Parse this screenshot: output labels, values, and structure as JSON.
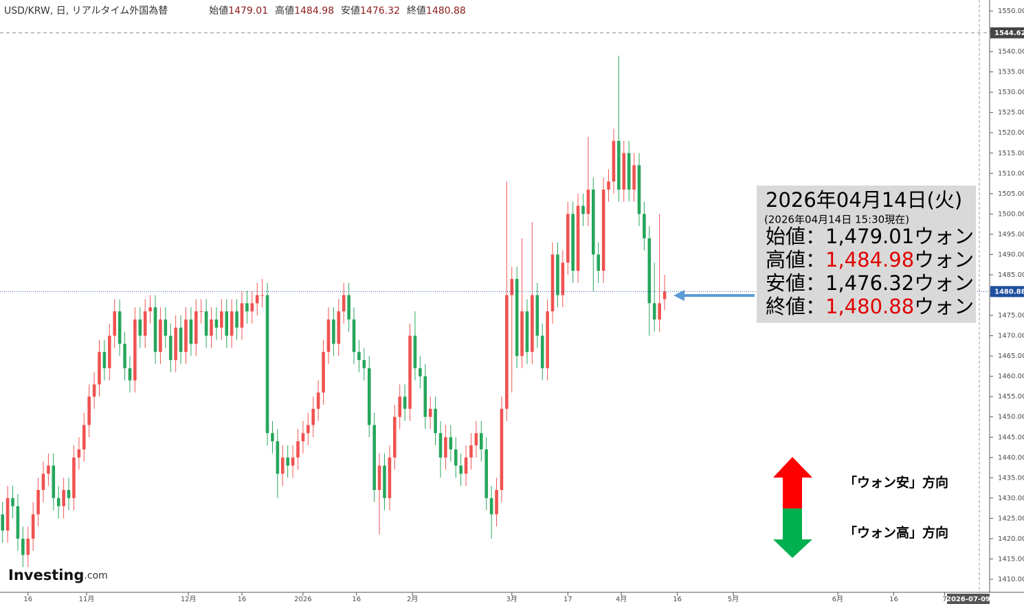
{
  "header": {
    "symbol": "USD/KRW, 日, リアルタイム外国為替",
    "open_label": "始値",
    "high_label": "高値",
    "low_label": "安値",
    "close_label": "終値"
  },
  "chart_data": {
    "type": "candlestick",
    "up_color": "#ef5350",
    "down_color": "#26a65b",
    "categories": [
      null,
      null,
      null,
      null,
      null,
      null,
      null,
      null,
      null,
      null,
      null,
      null,
      null,
      null,
      null,
      null,
      null,
      null,
      null,
      null,
      null,
      null,
      null,
      null,
      null,
      null,
      null,
      null,
      null,
      null,
      null,
      null,
      null,
      null,
      null,
      null,
      null,
      null,
      null,
      null,
      null,
      null,
      null,
      null,
      null,
      null,
      null,
      null,
      null,
      null,
      null,
      null,
      null,
      null,
      null,
      null,
      null,
      null,
      null,
      null,
      null,
      null,
      null,
      null,
      null,
      null,
      null,
      null,
      null,
      null,
      null,
      null,
      null,
      null,
      null,
      null,
      null,
      null,
      null,
      null,
      null,
      null,
      null,
      null,
      null,
      null,
      null,
      null,
      null,
      null,
      null,
      null,
      null,
      null,
      null,
      null,
      null,
      null,
      null,
      null,
      null,
      null,
      null,
      null,
      null,
      null,
      null,
      null,
      null,
      null,
      null,
      null,
      null,
      null,
      null,
      null,
      null,
      null,
      null,
      null,
      null,
      null,
      null,
      null,
      null,
      null,
      null,
      null,
      null,
      null,
      null
    ],
    "open": [
      1426,
      1422,
      1430,
      1428,
      1420,
      1416,
      1420,
      1426,
      1432,
      1436,
      1438,
      1430,
      1428,
      1432,
      1430,
      1440,
      1442,
      1448,
      1455,
      1458,
      1466,
      1462,
      1470,
      1476,
      1468,
      1462,
      1459,
      1474,
      1470,
      1476,
      1477,
      1466,
      1474,
      1470,
      1464,
      1472,
      1466,
      1474,
      1468,
      1476,
      1476,
      1470,
      1474,
      1472,
      1476,
      1470,
      1476,
      1472,
      1478,
      1476,
      1478,
      1480,
      1480,
      1446,
      1444,
      1436,
      1440,
      1438,
      1440,
      1444,
      1446,
      1448,
      1452,
      1456,
      1466,
      1474,
      1468,
      1476,
      1480,
      1474,
      1466,
      1464,
      1462,
      1448,
      1432,
      1438,
      1430,
      1440,
      1450,
      1455,
      1452,
      1470,
      1462,
      1460,
      1450,
      1452,
      1446,
      1440,
      1445,
      1442,
      1438,
      1436,
      1440,
      1443,
      1446,
      1442,
      1430,
      1426,
      1432,
      1452,
      1480,
      1484,
      1465,
      1476,
      1466,
      1480,
      1470,
      1462,
      1476,
      1490,
      1480,
      1488,
      1500,
      1486,
      1502,
      1500,
      1506,
      1490,
      1486,
      1506,
      1508,
      1518,
      1506,
      1515,
      1506,
      1512,
      1500,
      1494,
      1478,
      1474,
      1479.01
    ],
    "high": [
      1429,
      1433,
      1433,
      1431,
      1423,
      1423,
      1429,
      1435,
      1439,
      1441,
      1441,
      1433,
      1435,
      1435,
      1443,
      1445,
      1451,
      1458,
      1461,
      1469,
      1469,
      1473,
      1479,
      1479,
      1471,
      1465,
      1477,
      1477,
      1479,
      1480,
      1480,
      1477,
      1477,
      1473,
      1475,
      1475,
      1477,
      1477,
      1479,
      1479,
      1479,
      1477,
      1477,
      1479,
      1479,
      1479,
      1479,
      1481,
      1481,
      1481,
      1483,
      1484,
      1483,
      1449,
      1447,
      1443,
      1443,
      1443,
      1447,
      1449,
      1451,
      1455,
      1459,
      1469,
      1477,
      1477,
      1479,
      1483,
      1483,
      1477,
      1469,
      1467,
      1465,
      1451,
      1441,
      1441,
      1443,
      1453,
      1458,
      1458,
      1473,
      1476,
      1465,
      1463,
      1455,
      1455,
      1449,
      1448,
      1448,
      1445,
      1441,
      1443,
      1446,
      1449,
      1449,
      1445,
      1433,
      1435,
      1455,
      1508,
      1487,
      1487,
      1494,
      1479,
      1498,
      1483,
      1473,
      1479,
      1493,
      1493,
      1491,
      1503,
      1503,
      1505,
      1505,
      1519,
      1509,
      1493,
      1509,
      1511,
      1521,
      1539,
      1518,
      1518,
      1515,
      1515,
      1503,
      1497,
      1488,
      1500,
      1484.98
    ],
    "low": [
      1419,
      1419,
      1425,
      1417,
      1413,
      1413,
      1417,
      1423,
      1429,
      1433,
      1427,
      1425,
      1425,
      1427,
      1427,
      1437,
      1439,
      1445,
      1452,
      1455,
      1459,
      1459,
      1467,
      1465,
      1459,
      1456,
      1456,
      1467,
      1467,
      1473,
      1463,
      1463,
      1467,
      1461,
      1461,
      1463,
      1463,
      1465,
      1465,
      1473,
      1467,
      1467,
      1469,
      1469,
      1467,
      1467,
      1469,
      1469,
      1473,
      1473,
      1475,
      1477,
      1443,
      1441,
      1430,
      1433,
      1435,
      1435,
      1437,
      1441,
      1443,
      1445,
      1449,
      1453,
      1463,
      1465,
      1465,
      1473,
      1471,
      1463,
      1461,
      1459,
      1445,
      1429,
      1421,
      1427,
      1427,
      1437,
      1447,
      1449,
      1449,
      1459,
      1457,
      1447,
      1447,
      1443,
      1435,
      1437,
      1439,
      1435,
      1433,
      1433,
      1437,
      1440,
      1439,
      1427,
      1420,
      1423,
      1429,
      1449,
      1456,
      1462,
      1462,
      1463,
      1463,
      1467,
      1459,
      1459,
      1473,
      1477,
      1477,
      1485,
      1483,
      1483,
      1497,
      1497,
      1481,
      1483,
      1483,
      1503,
      1505,
      1503,
      1503,
      1503,
      1503,
      1497,
      1491,
      1470,
      1471,
      1471,
      1476.32
    ],
    "close": [
      1422,
      1430,
      1428,
      1420,
      1416,
      1420,
      1426,
      1432,
      1436,
      1438,
      1430,
      1428,
      1432,
      1430,
      1440,
      1442,
      1448,
      1455,
      1458,
      1466,
      1462,
      1470,
      1476,
      1468,
      1462,
      1459,
      1474,
      1470,
      1476,
      1477,
      1466,
      1474,
      1470,
      1464,
      1472,
      1466,
      1474,
      1468,
      1476,
      1476,
      1470,
      1474,
      1472,
      1476,
      1470,
      1476,
      1472,
      1478,
      1476,
      1478,
      1480,
      1480,
      1446,
      1444,
      1436,
      1440,
      1438,
      1440,
      1444,
      1446,
      1448,
      1452,
      1456,
      1466,
      1474,
      1468,
      1476,
      1480,
      1474,
      1466,
      1464,
      1462,
      1448,
      1432,
      1438,
      1430,
      1440,
      1450,
      1455,
      1452,
      1470,
      1462,
      1460,
      1450,
      1452,
      1446,
      1440,
      1445,
      1442,
      1438,
      1436,
      1440,
      1443,
      1446,
      1442,
      1430,
      1426,
      1432,
      1452,
      1480,
      1484,
      1465,
      1476,
      1466,
      1480,
      1470,
      1462,
      1476,
      1490,
      1480,
      1488,
      1500,
      1486,
      1502,
      1500,
      1506,
      1490,
      1486,
      1506,
      1508,
      1518,
      1506,
      1515,
      1506,
      1512,
      1500,
      1494,
      1478,
      1474,
      1478,
      1480.88
    ],
    "xlim": [
      -0.5,
      191.8
    ],
    "xticks": [
      {
        "value": 5,
        "label": "16"
      },
      {
        "value": 16.5,
        "label": "11月"
      },
      {
        "value": 36.5,
        "label": "12月"
      },
      {
        "value": 47,
        "label": "16"
      },
      {
        "value": 59,
        "label": "2026"
      },
      {
        "value": 69.5,
        "label": "16"
      },
      {
        "value": 80.5,
        "label": "2月"
      },
      {
        "value": 100,
        "label": "3月"
      },
      {
        "value": 111,
        "label": "17"
      },
      {
        "value": 121.5,
        "label": "4月"
      },
      {
        "value": 132.5,
        "label": "16"
      },
      {
        "value": 143.5,
        "label": "5月"
      },
      {
        "value": 164,
        "label": "6月"
      },
      {
        "value": 175,
        "label": "16"
      },
      {
        "value": 185,
        "label": "7"
      }
    ],
    "x_end_label": "2026-07-09",
    "ylim": [
      1410,
      1550
    ],
    "yticks": [
      {
        "value": 1410,
        "label": "1410.00"
      },
      {
        "value": 1415,
        "label": "1415.00"
      },
      {
        "value": 1420,
        "label": "1420.00"
      },
      {
        "value": 1425,
        "label": "1425.00"
      },
      {
        "value": 1430,
        "label": "1430.00"
      },
      {
        "value": 1435,
        "label": "1435.00"
      },
      {
        "value": 1440,
        "label": "1440.00"
      },
      {
        "value": 1445,
        "label": "1445.00"
      },
      {
        "value": 1450,
        "label": "1450.00"
      },
      {
        "value": 1455,
        "label": "1455.00"
      },
      {
        "value": 1460,
        "label": "1460.00"
      },
      {
        "value": 1465,
        "label": "1465.00"
      },
      {
        "value": 1470,
        "label": "1470.00"
      },
      {
        "value": 1475,
        "label": "1475.00"
      },
      {
        "value": 1480,
        "label": "1480.00"
      },
      {
        "value": 1485,
        "label": "1485.00"
      },
      {
        "value": 1490,
        "label": "1490.00"
      },
      {
        "value": 1495,
        "label": "1495.00"
      },
      {
        "value": 1500,
        "label": "1500.00"
      },
      {
        "value": 1505,
        "label": "1505.00"
      },
      {
        "value": 1510,
        "label": "1510.00"
      },
      {
        "value": 1515,
        "label": "1515.00"
      },
      {
        "value": 1520,
        "label": "1520.00"
      },
      {
        "value": 1525,
        "label": "1525.00"
      },
      {
        "value": 1530,
        "label": "1530.00"
      },
      {
        "value": 1535,
        "label": "1535.00"
      },
      {
        "value": 1540,
        "label": "1540.00"
      },
      {
        "value": 1545,
        "label": "1545.00"
      },
      {
        "value": 1550,
        "label": "1550.00"
      }
    ],
    "reference_line": 1544.62
  },
  "info_box": {
    "date": "2026年04月14日(火)",
    "asof": "(2026年04月14日 15:30現在)",
    "lines": [
      {
        "label": "始値：",
        "value": "1,479.01",
        "unit": "ウォン"
      },
      {
        "label": "高値：",
        "value": "1,484.98",
        "unit": "ウォン"
      },
      {
        "label": "安値：",
        "value": "1,476.32",
        "unit": "ウォン"
      },
      {
        "label": "終値：",
        "value": "1,480.88",
        "unit": "ウォン"
      }
    ]
  },
  "legend_arrows": {
    "up": "「ウォン安」方向",
    "down": "「ウォン高」方向"
  },
  "logo": {
    "name": "Investing",
    "suffix": ".com"
  }
}
